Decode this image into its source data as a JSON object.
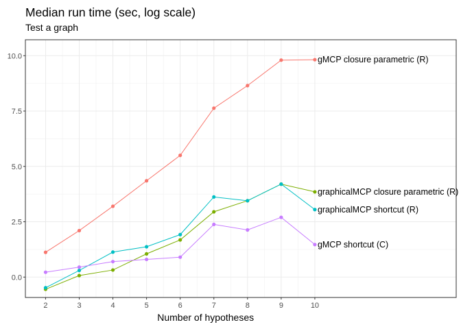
{
  "chart_data": {
    "type": "line",
    "title": "Median run time (sec, log scale)",
    "subtitle": "Test a graph",
    "xlabel": "Number of hypotheses",
    "ylabel": "",
    "x": [
      2,
      3,
      4,
      5,
      6,
      7,
      8,
      9,
      10
    ],
    "xlim": [
      1.4,
      14.2
    ],
    "ylim": [
      -0.92,
      10.72
    ],
    "y_ticks": [
      0.0,
      2.5,
      5.0,
      7.5,
      10.0
    ],
    "y_tick_labels": [
      "0.0",
      "2.5",
      "5.0",
      "7.5",
      "10.0"
    ],
    "x_ticks": [
      2,
      3,
      4,
      5,
      6,
      7,
      8,
      9,
      10
    ],
    "x_tick_labels": [
      "2",
      "3",
      "4",
      "5",
      "6",
      "7",
      "8",
      "9",
      "10"
    ],
    "grid": true,
    "legend": "none (direct labels at line ends)",
    "series": [
      {
        "name": "gMCP closure parametric (R)",
        "color": "#F8766D",
        "values": [
          1.12,
          2.1,
          3.2,
          4.35,
          5.5,
          7.63,
          8.65,
          9.8,
          9.82
        ]
      },
      {
        "name": "graphicalMCP closure parametric (R)",
        "color": "#7CAE00",
        "values": [
          -0.55,
          0.07,
          0.32,
          1.05,
          1.68,
          2.95,
          3.45,
          4.2,
          3.85
        ]
      },
      {
        "name": "graphicalMCP shortcut (R)",
        "color": "#00BFC4",
        "values": [
          -0.48,
          0.3,
          1.13,
          1.37,
          1.92,
          3.62,
          3.45,
          4.2,
          3.05
        ]
      },
      {
        "name": "gMCP shortcut (C)",
        "color": "#C77CFF",
        "values": [
          0.22,
          0.45,
          0.7,
          0.8,
          0.9,
          2.38,
          2.13,
          2.7,
          1.47
        ]
      }
    ]
  }
}
